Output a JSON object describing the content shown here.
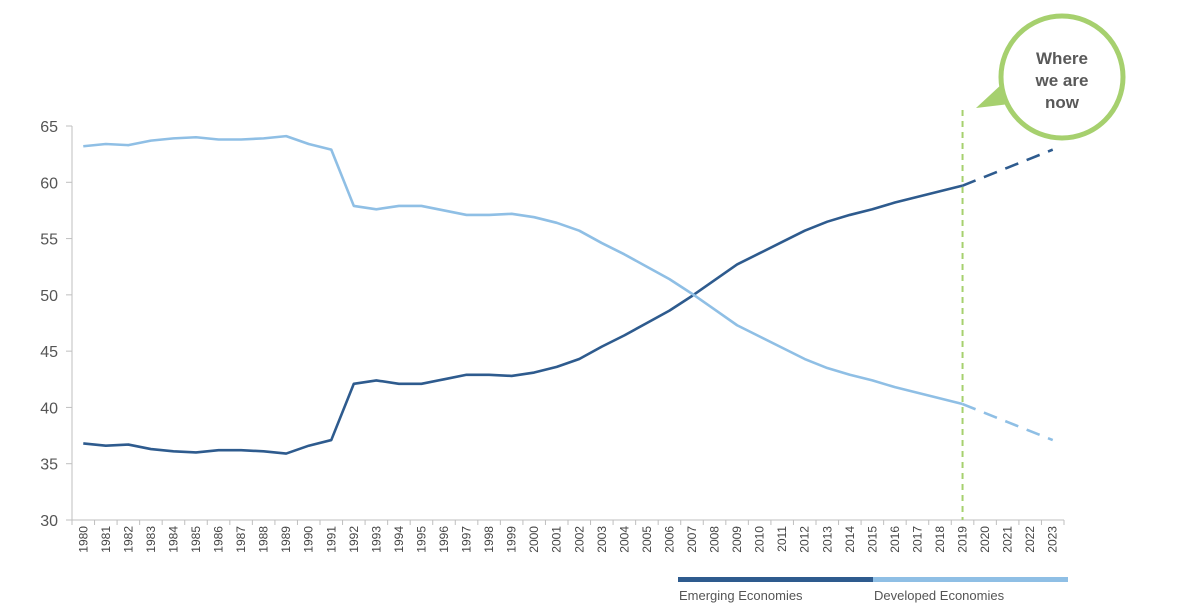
{
  "chart_data": {
    "type": "line",
    "title": "",
    "xlabel": "",
    "ylabel": "",
    "ylim": [
      30,
      65
    ],
    "yticks": [
      30,
      35,
      40,
      45,
      50,
      55,
      60,
      65
    ],
    "x": [
      "1980",
      "1981",
      "1982",
      "1983",
      "1984",
      "1985",
      "1986",
      "1987",
      "1988",
      "1989",
      "1990",
      "1991",
      "1992",
      "1993",
      "1994",
      "1995",
      "1996",
      "1997",
      "1998",
      "1999",
      "2000",
      "2001",
      "2002",
      "2003",
      "2004",
      "2005",
      "2006",
      "2007",
      "2008",
      "2009",
      "2010",
      "2011",
      "2012",
      "2013",
      "2014",
      "2015",
      "2016",
      "2017",
      "2018",
      "2019",
      "2020",
      "2021",
      "2022",
      "2023"
    ],
    "projection_start": "2019",
    "series": [
      {
        "name": "Emerging Economies",
        "color": "#2e5b8e",
        "values": [
          36.8,
          36.6,
          36.7,
          36.3,
          36.1,
          36.0,
          36.2,
          36.2,
          36.1,
          35.9,
          36.6,
          37.1,
          42.1,
          42.4,
          42.1,
          42.1,
          42.5,
          42.9,
          42.9,
          42.8,
          43.1,
          43.6,
          44.3,
          45.4,
          46.4,
          47.5,
          48.6,
          49.9,
          51.3,
          52.7,
          53.7,
          54.7,
          55.7,
          56.5,
          57.1,
          57.6,
          58.2,
          58.7,
          59.2,
          59.7,
          60.5,
          61.3,
          62.1,
          62.9
        ]
      },
      {
        "name": "Developed Economies",
        "color": "#8fbfe5",
        "values": [
          63.2,
          63.4,
          63.3,
          63.7,
          63.9,
          64.0,
          63.8,
          63.8,
          63.9,
          64.1,
          63.4,
          62.9,
          57.9,
          57.6,
          57.9,
          57.9,
          57.5,
          57.1,
          57.1,
          57.2,
          56.9,
          56.4,
          55.7,
          54.6,
          53.6,
          52.5,
          51.4,
          50.1,
          48.7,
          47.3,
          46.3,
          45.3,
          44.3,
          43.5,
          42.9,
          42.4,
          41.8,
          41.3,
          40.8,
          40.3,
          39.5,
          38.7,
          37.9,
          37.1
        ]
      }
    ],
    "annotation": {
      "text_lines": [
        "Where",
        "we are",
        "now"
      ],
      "at_x": "2019",
      "line_color": "#a6d06e",
      "bubble_color": "#a6d06e"
    },
    "legend": {
      "placement": "bottom-right"
    },
    "grid": false
  }
}
